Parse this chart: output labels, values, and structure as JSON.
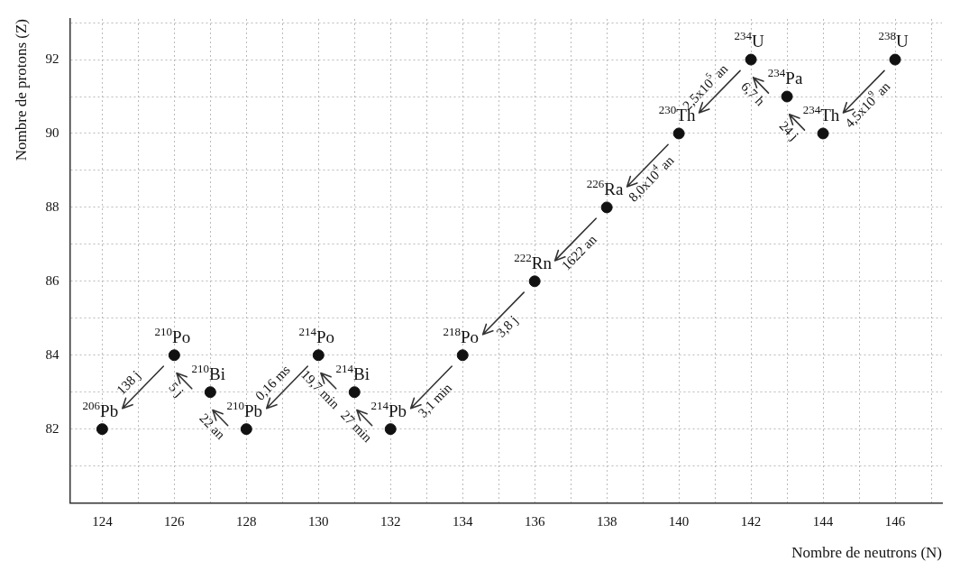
{
  "chart_data": {
    "type": "scatter",
    "xlabel": "Nombre de neutrons (N)",
    "ylabel": "Nombre de protons (Z)",
    "x": [
      146,
      144,
      143,
      142,
      140,
      138,
      136,
      134,
      132,
      131,
      130,
      128,
      127,
      126,
      124
    ],
    "values": [
      92,
      90,
      91,
      92,
      90,
      88,
      86,
      84,
      82,
      83,
      84,
      82,
      83,
      84,
      82
    ],
    "color": "#111111",
    "marker": "circle",
    "grid": true,
    "legend": false,
    "xlim": [
      123.1,
      147.3
    ],
    "xticks": [
      124,
      {
        "value": 125,
        "label": null
      },
      126,
      {
        "value": 127,
        "label": null
      },
      128,
      {
        "value": 129,
        "label": null
      },
      130,
      {
        "value": 131,
        "label": null
      },
      132,
      {
        "value": 133,
        "label": null
      },
      134,
      {
        "value": 135,
        "label": null
      },
      136,
      {
        "value": 137,
        "label": null
      },
      138,
      {
        "value": 139,
        "label": null
      },
      140,
      {
        "value": 141,
        "label": null
      },
      142,
      {
        "value": 143,
        "label": null
      },
      144,
      {
        "value": 145,
        "label": null
      },
      146,
      {
        "value": 147,
        "label": null
      }
    ],
    "ylim": [
      80,
      93.1
    ],
    "yticks": [
      {
        "value": 81,
        "label": null
      },
      82,
      {
        "value": 83,
        "label": null
      },
      84,
      {
        "value": 85,
        "label": null
      },
      86,
      {
        "value": 87,
        "label": null
      },
      88,
      {
        "value": 89,
        "label": null
      },
      90,
      {
        "value": 91,
        "label": null
      },
      92,
      {
        "value": 93,
        "label": null
      }
    ],
    "annotations": [
      {
        "text": "$^{238}$U",
        "x": 146,
        "y": 92
      },
      {
        "text": "$^{234}$Th",
        "x": 144,
        "y": 90
      },
      {
        "text": "$^{234}$Pa",
        "x": 143,
        "y": 91
      },
      {
        "text": "$^{234}$U",
        "x": 142,
        "y": 92
      },
      {
        "text": "$^{230}$Th",
        "x": 140,
        "y": 90
      },
      {
        "text": "$^{226}$Ra",
        "x": 138,
        "y": 88
      },
      {
        "text": "$^{222}$Rn",
        "x": 136,
        "y": 86
      },
      {
        "text": "$^{218}$Po",
        "x": 134,
        "y": 84
      },
      {
        "text": "$^{214}$Pb",
        "x": 132,
        "y": 82
      },
      {
        "text": "$^{214}$Bi",
        "x": 131,
        "y": 83
      },
      {
        "text": "$^{214}$Po",
        "x": 130,
        "y": 84
      },
      {
        "text": "$^{210}$Pb",
        "x": 128,
        "y": 82
      },
      {
        "text": "$^{210}$Bi",
        "x": 127,
        "y": 83
      },
      {
        "text": "$^{210}$Po",
        "x": 126,
        "y": 84
      },
      {
        "text": "$^{206}$Pb",
        "x": 124,
        "y": 82
      },
      "4,5x10$^{9}$ an",
      "24 j",
      "6,7 h",
      "2,5x10$^{5}$ an",
      "8,0x10$^{4}$ an",
      "1622 an",
      "3,8 j",
      "3,1 min",
      "27 min",
      "19,7 min",
      "0,16 ms",
      "22 an",
      "5 j",
      "138 j"
    ]
  }
}
